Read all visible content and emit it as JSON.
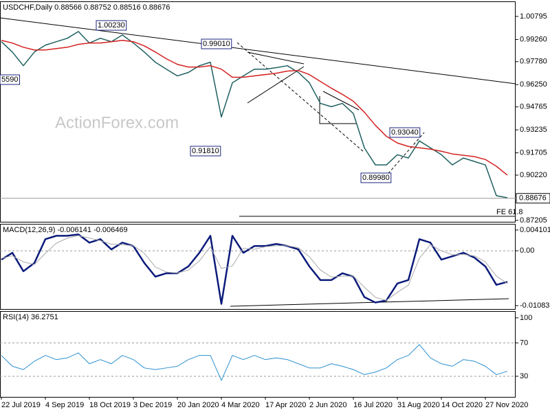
{
  "chart_data": [
    {
      "type": "line",
      "title": "USDCHF,Daily  0.88566 0.88752 0.88516 0.88676",
      "watermark": "ActionForex.com",
      "ylim": [
        0.8711,
        1.0175
      ],
      "yticks": [
        1.00795,
        {
          "value": 0.9926,
          "label": "0.99260"
        },
        {
          "value": 0.9778,
          "label": "0.97780"
        },
        {
          "value": 0.9625,
          "label": "0.96250"
        },
        0.94765,
        0.93235,
        0.91705,
        {
          "value": 0.9022,
          "label": "0.90220"
        },
        0.87205
      ],
      "last_price": 0.88676,
      "annotations": [
        "1.00230",
        "0.99010",
        "5590",
        "0.91810",
        "0.89980",
        "0.93040",
        "FE 61.8"
      ],
      "series": [
        {
          "name": "Close",
          "color": "#1e5f5f",
          "values": [
            0.9911,
            0.9842,
            0.9751,
            0.9842,
            0.9888,
            0.9911,
            0.9934,
            0.9979,
            0.9902,
            0.9934,
            0.9911,
            0.9956,
            0.9902,
            0.9842,
            0.9774,
            0.9728,
            0.9683,
            0.9706,
            0.9751,
            0.9774,
            0.9409,
            0.9637,
            0.9683,
            0.9728,
            0.9728,
            0.9738,
            0.9751,
            0.9706,
            0.9637,
            0.95,
            0.9478,
            0.95,
            0.9432,
            0.9204,
            0.909,
            0.909,
            0.9158,
            0.9136,
            0.925,
            0.9204,
            0.9158,
            0.909,
            0.9136,
            0.9113,
            0.909,
            0.8885,
            0.8871
          ]
        },
        {
          "name": "MA",
          "color": "#d42020",
          "values": [
            0.992,
            0.9902,
            0.9874,
            0.9856,
            0.9856,
            0.9865,
            0.9874,
            0.9893,
            0.9902,
            0.9902,
            0.9911,
            0.992,
            0.9911,
            0.9883,
            0.9842,
            0.9797,
            0.976,
            0.9742,
            0.9742,
            0.9751,
            0.9728,
            0.9674,
            0.9674,
            0.9683,
            0.9692,
            0.9701,
            0.9715,
            0.9719,
            0.9692,
            0.9646,
            0.9601,
            0.956,
            0.9514,
            0.9441,
            0.9354,
            0.9281,
            0.9236,
            0.9213,
            0.9204,
            0.9195,
            0.9181,
            0.9163,
            0.9154,
            0.9145,
            0.9126,
            0.9081,
            0.9022
          ]
        }
      ]
    },
    {
      "type": "line",
      "title": "MACD(12,26,9) -0.006141 -0.006469",
      "ylim": [
        -0.0115,
        0.00518
      ],
      "yticks": [
        0.004101,
        {
          "value": 0,
          "label": "0.00"
        },
        -0.010833
      ],
      "levels": [
        0
      ],
      "series": [
        {
          "name": "MACD",
          "color": "#0a1a7a",
          "width": 2.5,
          "values": [
            -0.00175,
            -0.0004,
            -0.00404,
            -0.00242,
            0.00229,
            0.00296,
            0.00296,
            0.00323,
            0.00161,
            0.00229,
            0.00027,
            0.00161,
            0.00094,
            -0.00242,
            -0.00511,
            -0.00444,
            -0.00444,
            -0.00309,
            -0.0004,
            0.00296,
            -0.01049,
            0.00296,
            -0.0004,
            0.00094,
            0.00094,
            0.00135,
            0.00094,
            0.00027,
            -0.00309,
            -0.00578,
            -0.00578,
            -0.00444,
            -0.00511,
            -0.00915,
            -0.01022,
            -0.00982,
            -0.00646,
            -0.00578,
            0.00229,
            0.00161,
            -0.00175,
            -0.00108,
            -0.0004,
            -0.00135,
            -0.00309,
            -0.00673,
            -0.00614
          ]
        },
        {
          "name": "Signal",
          "color": "#aaaaaa",
          "width": 1,
          "values": [
            -0.0015,
            -0.001,
            -0.0022,
            -0.0027,
            -0.0005,
            0.0015,
            0.0025,
            0.003,
            0.0025,
            0.002,
            0.0013,
            0.0012,
            0.001,
            -0.0005,
            -0.0032,
            -0.0042,
            -0.0044,
            -0.0038,
            -0.002,
            0.0008,
            -0.0035,
            -0.003,
            0.0005,
            0.0003,
            0.0008,
            0.001,
            0.001,
            0.0006,
            -0.0012,
            -0.0038,
            -0.0052,
            -0.005,
            -0.005,
            -0.0072,
            -0.0092,
            -0.0098,
            -0.0082,
            -0.0068,
            -0.0015,
            0.0012,
            0.0,
            -0.0008,
            -0.0007,
            -0.001,
            -0.0022,
            -0.005,
            -0.00647
          ]
        }
      ]
    },
    {
      "type": "line",
      "title": "RSI(14) 36.2751",
      "ylim": [
        5.3,
        107.3
      ],
      "yticks": [
        100,
        70,
        30
      ],
      "levels": [
        70,
        30
      ],
      "categories": [
        "22 Jul 2019",
        null,
        null,
        null,
        "4 Sep 2019",
        null,
        null,
        null,
        "18 Oct 2019",
        null,
        null,
        null,
        "3 Dec 2019",
        null,
        null,
        null,
        "20 Jan 2020",
        null,
        null,
        null,
        "4 Mar 2020",
        null,
        null,
        null,
        "17 Apr 2020",
        null,
        null,
        null,
        "2 Jun 2020",
        null,
        null,
        null,
        "16 Jul 2020",
        null,
        null,
        null,
        "31 Aug 2020",
        null,
        null,
        null,
        "14 Oct 2020",
        null,
        null,
        null,
        "27 Nov 2020",
        null,
        null
      ],
      "series": [
        {
          "name": "RSI",
          "color": "#2a8fd0",
          "width": 1,
          "values": [
            55,
            42,
            38,
            48,
            55,
            50,
            52,
            58,
            45,
            50,
            45,
            55,
            50,
            40,
            38,
            40,
            42,
            50,
            55,
            55,
            25,
            55,
            50,
            55,
            50,
            52,
            50,
            45,
            40,
            40,
            45,
            42,
            38,
            32,
            35,
            40,
            50,
            55,
            68,
            52,
            45,
            42,
            50,
            48,
            42,
            32,
            36
          ]
        }
      ]
    }
  ]
}
